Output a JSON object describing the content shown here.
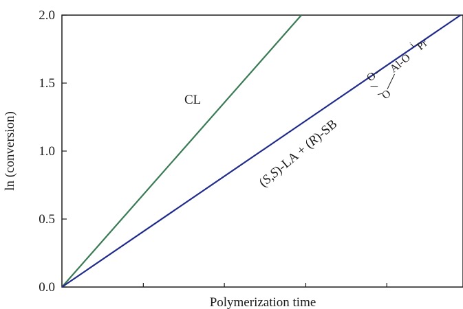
{
  "chart_data": {
    "type": "line",
    "xlabel": "Polymerization time",
    "ylabel": "ln (conversion)",
    "ylim": [
      0,
      2.0
    ],
    "xlim": [
      0,
      1
    ],
    "y_ticks": [
      "0.0",
      "0.5",
      "1.0",
      "1.5",
      "2.0"
    ],
    "y_tick_values": [
      0,
      0.5,
      1.0,
      1.5,
      2.0
    ],
    "x_tick_values": [
      0.203,
      0.405,
      0.608,
      0.81
    ],
    "grid": false,
    "series": [
      {
        "name": "CL",
        "color": "#3a7a55",
        "x": [
          0,
          0.597
        ],
        "y": [
          0,
          2.0
        ]
      },
      {
        "name": "(S,S)-LA + (R)-SB-O2-Al-OiPr",
        "color": "#1f2a8a",
        "x": [
          0,
          0.994
        ],
        "y": [
          0,
          2.0
        ]
      }
    ],
    "annotations": {
      "cl_label": "CL",
      "ssla": {
        "p1": "(",
        "p2": "S,S",
        "p3": ")-LA + (",
        "p4": "R",
        "p5": ")-SB",
        "o_top": "O",
        "o_bottom": "O",
        "dash": "–",
        "al": "Al-O",
        "pr": "Pr",
        "i": "i"
      }
    }
  }
}
